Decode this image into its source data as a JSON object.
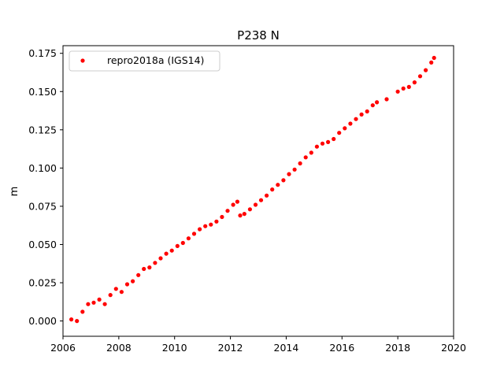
{
  "chart_data": {
    "type": "scatter",
    "title": "P238 N",
    "xlabel": "",
    "ylabel": "m",
    "xlim": [
      2006,
      2020
    ],
    "ylim": [
      -0.01,
      0.18
    ],
    "x_ticks": [
      2006,
      2008,
      2010,
      2012,
      2014,
      2016,
      2018,
      2020
    ],
    "x_tick_labels": [
      "2006",
      "2008",
      "2010",
      "2012",
      "2014",
      "2016",
      "2018",
      "2020"
    ],
    "y_ticks": [
      0.0,
      0.025,
      0.05,
      0.075,
      0.1,
      0.125,
      0.15,
      0.175
    ],
    "y_tick_labels": [
      "0.000",
      "0.025",
      "0.050",
      "0.075",
      "0.100",
      "0.125",
      "0.150",
      "0.175"
    ],
    "grid": false,
    "legend_position": "top-left",
    "series": [
      {
        "name": "repro2018a (IGS14)",
        "color": "#ff0000",
        "points": [
          [
            2006.3,
            0.001
          ],
          [
            2006.5,
            0.0
          ],
          [
            2006.7,
            0.006
          ],
          [
            2006.9,
            0.011
          ],
          [
            2007.1,
            0.012
          ],
          [
            2007.3,
            0.014
          ],
          [
            2007.5,
            0.011
          ],
          [
            2007.7,
            0.017
          ],
          [
            2007.9,
            0.021
          ],
          [
            2008.1,
            0.019
          ],
          [
            2008.3,
            0.024
          ],
          [
            2008.5,
            0.026
          ],
          [
            2008.7,
            0.03
          ],
          [
            2008.9,
            0.034
          ],
          [
            2009.1,
            0.035
          ],
          [
            2009.3,
            0.038
          ],
          [
            2009.5,
            0.041
          ],
          [
            2009.7,
            0.044
          ],
          [
            2009.9,
            0.046
          ],
          [
            2010.1,
            0.049
          ],
          [
            2010.3,
            0.051
          ],
          [
            2010.5,
            0.054
          ],
          [
            2010.7,
            0.057
          ],
          [
            2010.9,
            0.06
          ],
          [
            2011.1,
            0.062
          ],
          [
            2011.3,
            0.063
          ],
          [
            2011.5,
            0.065
          ],
          [
            2011.7,
            0.068
          ],
          [
            2011.9,
            0.072
          ],
          [
            2012.1,
            0.076
          ],
          [
            2012.25,
            0.078
          ],
          [
            2012.35,
            0.069
          ],
          [
            2012.5,
            0.07
          ],
          [
            2012.7,
            0.073
          ],
          [
            2012.9,
            0.076
          ],
          [
            2013.1,
            0.079
          ],
          [
            2013.3,
            0.082
          ],
          [
            2013.5,
            0.086
          ],
          [
            2013.7,
            0.089
          ],
          [
            2013.9,
            0.092
          ],
          [
            2014.1,
            0.096
          ],
          [
            2014.3,
            0.099
          ],
          [
            2014.5,
            0.103
          ],
          [
            2014.7,
            0.107
          ],
          [
            2014.9,
            0.11
          ],
          [
            2015.1,
            0.114
          ],
          [
            2015.3,
            0.116
          ],
          [
            2015.5,
            0.117
          ],
          [
            2015.7,
            0.119
          ],
          [
            2015.9,
            0.123
          ],
          [
            2016.1,
            0.126
          ],
          [
            2016.3,
            0.129
          ],
          [
            2016.5,
            0.132
          ],
          [
            2016.7,
            0.135
          ],
          [
            2016.9,
            0.137
          ],
          [
            2017.1,
            0.141
          ],
          [
            2017.25,
            0.143
          ],
          [
            2017.6,
            0.145
          ],
          [
            2018.0,
            0.15
          ],
          [
            2018.2,
            0.152
          ],
          [
            2018.4,
            0.153
          ],
          [
            2018.6,
            0.156
          ],
          [
            2018.8,
            0.16
          ],
          [
            2019.0,
            0.164
          ],
          [
            2019.2,
            0.169
          ],
          [
            2019.3,
            0.172
          ]
        ]
      }
    ]
  }
}
